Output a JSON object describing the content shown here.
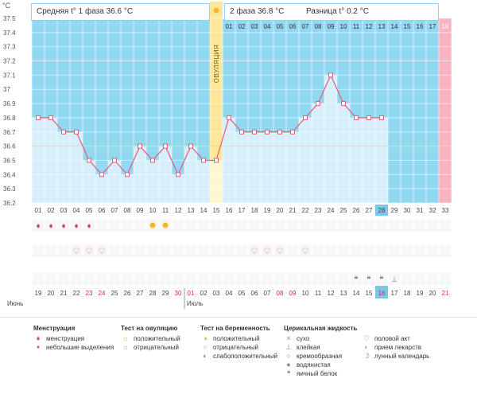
{
  "axis": {
    "unit": "°C",
    "y_labels": [
      "37.5",
      "37.4",
      "37.3",
      "37.2",
      "37.1",
      "37",
      "36.9",
      "36.8",
      "36.7",
      "36.6",
      "36.5",
      "36.4",
      "36.3",
      "36.2"
    ]
  },
  "header": {
    "phase1_text": "Средняя t° 1 фаза 36.6 °C",
    "phase2_text": "2 фаза 36.8 °C",
    "diff_text": "Разница t° 0.2 °C",
    "ovulation_label": "ОВУЛЯЦИЯ"
  },
  "colors": {
    "sky": "#91d8f3",
    "bar": "#d6effa",
    "ovulation": "#fce79a",
    "period_end": "#f9b3c3",
    "line": "#e65b7b",
    "coverline": "#e3e85a",
    "today": "#7cc6ea"
  },
  "top_day_numbers": [
    "01",
    "02",
    "03",
    "04",
    "05",
    "06",
    "07",
    "08",
    "09",
    "10",
    "11",
    "12",
    "13",
    "14",
    "15",
    "16",
    "17",
    "18"
  ],
  "chart_data": {
    "type": "line",
    "title": "Базальная температура",
    "ylabel": "°C",
    "ylim": [
      36.2,
      37.5
    ],
    "coverline": 36.6,
    "ovulation_day": 15,
    "x": [
      "01",
      "02",
      "03",
      "04",
      "05",
      "06",
      "07",
      "08",
      "09",
      "10",
      "11",
      "12",
      "13",
      "14",
      "15",
      "16",
      "17",
      "18",
      "19",
      "20",
      "21",
      "22",
      "23",
      "24",
      "25",
      "26",
      "27",
      "28",
      "29",
      "30",
      "31",
      "32",
      "33"
    ],
    "values": [
      36.8,
      36.8,
      36.7,
      36.7,
      36.5,
      36.4,
      36.5,
      36.4,
      36.6,
      36.5,
      36.6,
      36.4,
      36.6,
      36.5,
      36.5,
      36.8,
      36.7,
      36.7,
      36.7,
      36.7,
      36.7,
      36.8,
      36.9,
      37.1,
      36.9,
      36.8,
      36.8,
      36.8,
      null,
      null,
      null,
      null,
      null
    ],
    "today_index": 28
  },
  "markers": {
    "menstruation": [
      1,
      2,
      3,
      4,
      5
    ],
    "ovulation_test_positive": [
      10,
      11
    ],
    "sex": [
      4,
      5,
      6,
      18,
      19,
      20,
      22
    ],
    "egg_white": [
      26,
      27,
      28
    ],
    "sticky": [
      29
    ]
  },
  "calendar": {
    "days": [
      "19",
      "20",
      "21",
      "22",
      "23",
      "24",
      "25",
      "26",
      "27",
      "28",
      "29",
      "30",
      "01",
      "02",
      "03",
      "04",
      "05",
      "06",
      "07",
      "08",
      "09",
      "10",
      "11",
      "12",
      "13",
      "14",
      "15",
      "16",
      "17",
      "18",
      "19",
      "20",
      "21"
    ],
    "red_indices": [
      4,
      5,
      11,
      12,
      19,
      20,
      27,
      32
    ],
    "today_index": 27,
    "month_june": "Июнь",
    "month_july": "Июль"
  },
  "legend": {
    "menstruation": {
      "title": "Менструация",
      "items": [
        "менструация",
        "небольшие выделения"
      ]
    },
    "ovulation_test": {
      "title": "Тест на овуляцию",
      "items": [
        "положительный",
        "отрицательный"
      ]
    },
    "pregnancy_test": {
      "title": "Тест на беременность",
      "items": [
        "положительный",
        "отрицательный",
        "слабоположительный"
      ]
    },
    "cervical": {
      "title": "Церикальная жидкость",
      "items": [
        "сухо",
        "клейкая",
        "кремообразная",
        "водянистая",
        "яичный белок"
      ]
    },
    "other": {
      "items": [
        "половой акт",
        "прием лекарств",
        "лунный календарь"
      ]
    }
  }
}
